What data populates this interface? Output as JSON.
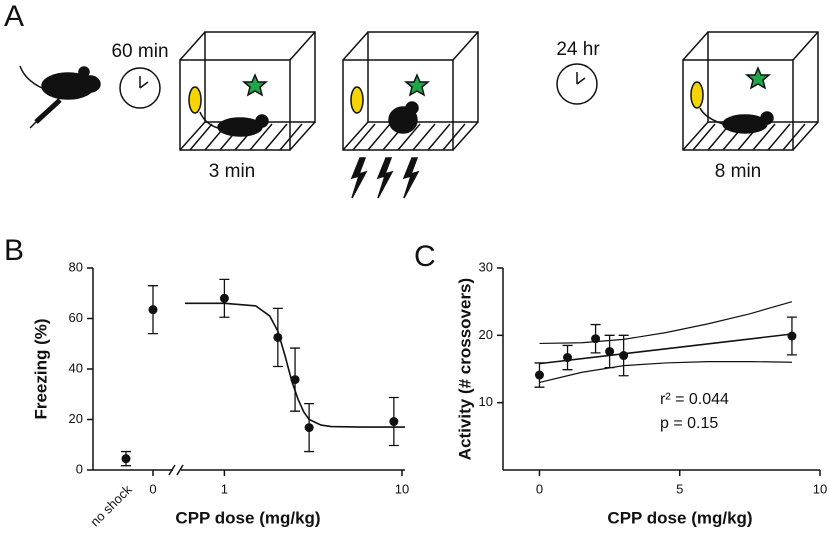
{
  "panel_labels": {
    "a": "A",
    "b": "B",
    "c": "C"
  },
  "diagram": {
    "labels": [
      "60 min",
      "3 min",
      "24 hr",
      "8 min"
    ]
  },
  "chart_data": [
    {
      "type": "scatter",
      "x_label": "CPP dose (mg/kg)",
      "y_label": "Freezing (%)",
      "xscale": "log",
      "xlim": [
        0.6,
        10.4
      ],
      "xticks": [
        1,
        10
      ],
      "ylim": [
        0,
        80
      ],
      "yticks": [
        0,
        20,
        40,
        60,
        80
      ],
      "categories": [
        "no shock",
        "0"
      ],
      "category_values": [
        4.5,
        63.5
      ],
      "category_errors": [
        2.8,
        9.5
      ],
      "x": [
        1,
        2,
        2.5,
        3,
        9
      ],
      "values": [
        68,
        52.5,
        35.8,
        16.8,
        19.2
      ],
      "errors": [
        7.5,
        11.5,
        12.5,
        9.5,
        9.5
      ],
      "color": "#111111",
      "fit": {
        "x": [
          0.6,
          1,
          1.5,
          1.8,
          2,
          2.2,
          2.4,
          2.6,
          2.8,
          3,
          3.5,
          4,
          6,
          10.4
        ],
        "values": [
          66,
          66,
          65,
          61,
          55,
          45,
          35,
          28,
          23,
          20,
          17.8,
          17.2,
          17,
          17
        ]
      }
    },
    {
      "type": "scatter",
      "x_label": "CPP dose (mg/kg)",
      "y_label": "Activity (# crossovers)",
      "xscale": "linear",
      "xlim": [
        -1.3,
        10
      ],
      "xticks": [
        0,
        5,
        10
      ],
      "ylim": [
        0,
        30
      ],
      "yticks": [
        10,
        20,
        30
      ],
      "x": [
        0,
        1,
        2,
        2.5,
        3,
        9
      ],
      "values": [
        14.1,
        16.7,
        19.5,
        17.6,
        17.0,
        19.9
      ],
      "errors": [
        1.8,
        1.8,
        2.1,
        2.4,
        3.0,
        2.8
      ],
      "color": "#111111",
      "fit": {
        "x": [
          0,
          9
        ],
        "values": [
          15.8,
          20.2
        ]
      },
      "ci_upper": {
        "x": [
          0,
          1.5,
          3,
          4.5,
          6,
          7.5,
          9
        ],
        "values": [
          18.8,
          18.9,
          19.4,
          20.4,
          21.7,
          23.2,
          25
        ]
      },
      "ci_lower": {
        "x": [
          0,
          1.5,
          3,
          4.5,
          6,
          7.5,
          9
        ],
        "values": [
          13,
          14.5,
          15.5,
          15.9,
          16.1,
          16.1,
          16
        ]
      },
      "annotations": [
        "r² = 0.044",
        "p = 0.15"
      ]
    }
  ]
}
